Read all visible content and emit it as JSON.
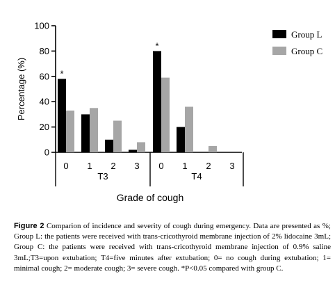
{
  "chart_data": {
    "type": "bar",
    "ylabel": "Percentage (%)",
    "xlabel": "Grade of cough",
    "ylim": [
      0,
      100
    ],
    "yticks": [
      0,
      20,
      40,
      60,
      80,
      100
    ],
    "groups": [
      {
        "name": "T3",
        "categories": [
          "0",
          "1",
          "2",
          "3"
        ]
      },
      {
        "name": "T4",
        "categories": [
          "0",
          "1",
          "2",
          "3"
        ]
      }
    ],
    "series": [
      {
        "name": "Group L",
        "color": "#000000",
        "values": [
          [
            58,
            30,
            10,
            2
          ],
          [
            80,
            20,
            0,
            0
          ]
        ]
      },
      {
        "name": "Group C",
        "color": "#a6a6a6",
        "values": [
          [
            33,
            35,
            25,
            8
          ],
          [
            59,
            36,
            5,
            0
          ]
        ]
      }
    ],
    "annotations": [
      {
        "text": "*",
        "group": 0,
        "category": 0,
        "series": 0
      },
      {
        "text": "*",
        "group": 1,
        "category": 0,
        "series": 0
      }
    ],
    "legend": "right",
    "grid": false
  },
  "caption": {
    "label": "Figure 2",
    "text": " Comparion of incidence and severity of cough during emergency. Data are presented as %; Group L: the patients were received with trans-cricothyroid membrane injection of 2% lidocaine 3mL; Group C: the patients were received with trans-cricothyroid membrane injection of 0.9% saline 3mL;T3=upon extubation; T4=five minutes after extubation; 0= no cough during extubation; 1= minimal cough; 2= moderate cough; 3= severe cough. *P<0.05 compared with group C."
  }
}
